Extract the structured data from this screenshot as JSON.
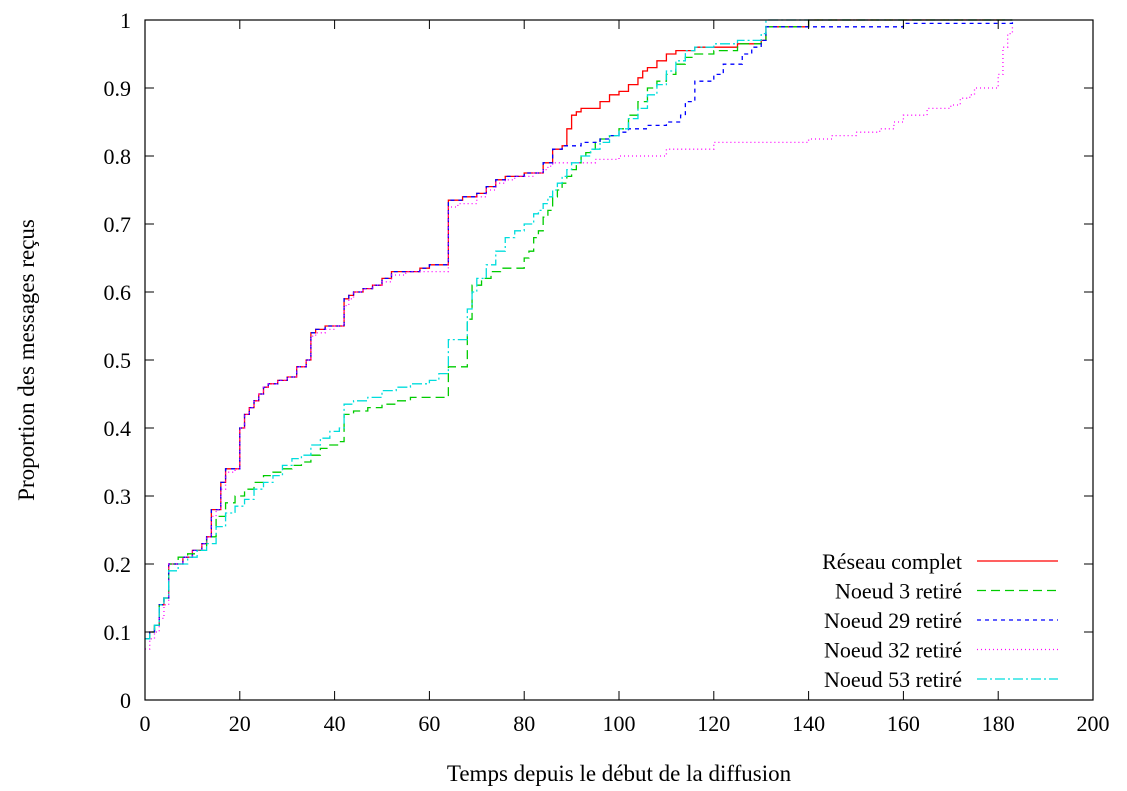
{
  "chart_data": {
    "type": "line",
    "step": true,
    "xlabel": "Temps depuis le début de la diffusion",
    "ylabel": "Proportion des messages reçus",
    "xlim": [
      0,
      200
    ],
    "ylim": [
      0,
      1
    ],
    "xticks": [
      0,
      20,
      40,
      60,
      80,
      100,
      120,
      140,
      160,
      180,
      200
    ],
    "yticks": [
      0,
      0.1,
      0.2,
      0.3,
      0.4,
      0.5,
      0.6,
      0.7,
      0.8,
      0.9,
      1
    ],
    "xtick_labels": [
      "0",
      "20",
      "40",
      "60",
      "80",
      "100",
      "120",
      "140",
      "160",
      "180",
      "200"
    ],
    "ytick_labels": [
      "0",
      "0.1",
      "0.2",
      "0.3",
      "0.4",
      "0.5",
      "0.6",
      "0.7",
      "0.8",
      "0.9",
      "1"
    ],
    "grid": false,
    "legend_position": "bottom-right",
    "series": [
      {
        "name": "Réseau complet",
        "color": "#ff0000",
        "dash": "solid",
        "x": [
          0,
          1,
          2,
          3,
          4,
          5,
          8,
          10,
          12,
          13,
          14,
          15,
          16,
          17,
          19,
          20,
          21,
          22,
          23,
          24,
          25,
          26,
          28,
          30,
          32,
          34,
          35,
          36,
          38,
          40,
          42,
          43,
          44,
          46,
          48,
          50,
          52,
          55,
          58,
          60,
          62,
          64,
          67,
          68,
          70,
          72,
          74,
          76,
          78,
          80,
          82,
          84,
          85,
          86,
          88,
          89,
          90,
          91,
          92,
          94,
          96,
          98,
          100,
          102,
          104,
          105,
          106,
          108,
          110,
          112,
          116,
          120,
          125,
          130,
          131,
          140,
          150,
          160,
          183
        ],
        "y": [
          0.09,
          0.1,
          0.11,
          0.14,
          0.15,
          0.2,
          0.21,
          0.22,
          0.23,
          0.24,
          0.28,
          0.28,
          0.32,
          0.34,
          0.34,
          0.4,
          0.42,
          0.43,
          0.44,
          0.45,
          0.46,
          0.465,
          0.47,
          0.475,
          0.49,
          0.5,
          0.54,
          0.545,
          0.55,
          0.55,
          0.59,
          0.595,
          0.6,
          0.605,
          0.61,
          0.62,
          0.63,
          0.63,
          0.635,
          0.64,
          0.64,
          0.735,
          0.74,
          0.74,
          0.745,
          0.755,
          0.765,
          0.77,
          0.77,
          0.775,
          0.775,
          0.79,
          0.79,
          0.81,
          0.815,
          0.84,
          0.86,
          0.865,
          0.87,
          0.87,
          0.88,
          0.89,
          0.895,
          0.905,
          0.915,
          0.925,
          0.93,
          0.94,
          0.95,
          0.955,
          0.96,
          0.96,
          0.965,
          0.97,
          0.99,
          1.0,
          1.0,
          1.0,
          1.0
        ]
      },
      {
        "name": "Noeud 3 retiré",
        "color": "#00cc00",
        "dash": "9,5",
        "x": [
          0,
          1,
          2,
          3,
          4,
          5,
          7,
          9,
          11,
          13,
          15,
          17,
          19,
          21,
          23,
          25,
          27,
          29,
          31,
          33,
          35,
          37,
          39,
          41,
          42,
          44,
          47,
          50,
          53,
          56,
          60,
          64,
          67,
          68,
          69,
          71,
          73,
          75,
          80,
          81,
          82,
          83,
          84,
          85,
          86,
          87,
          88,
          89,
          90,
          91,
          92,
          93,
          94,
          95,
          96,
          98,
          100,
          102,
          104,
          106,
          108,
          110,
          112,
          114,
          116,
          120,
          125,
          130,
          131,
          140,
          150,
          160,
          183
        ],
        "y": [
          0.09,
          0.1,
          0.11,
          0.14,
          0.15,
          0.2,
          0.21,
          0.215,
          0.22,
          0.24,
          0.27,
          0.29,
          0.3,
          0.31,
          0.32,
          0.33,
          0.335,
          0.34,
          0.345,
          0.35,
          0.36,
          0.37,
          0.375,
          0.38,
          0.42,
          0.425,
          0.43,
          0.435,
          0.44,
          0.445,
          0.445,
          0.49,
          0.49,
          0.56,
          0.61,
          0.62,
          0.63,
          0.635,
          0.65,
          0.66,
          0.68,
          0.69,
          0.71,
          0.72,
          0.74,
          0.75,
          0.76,
          0.77,
          0.78,
          0.79,
          0.8,
          0.805,
          0.81,
          0.82,
          0.825,
          0.83,
          0.84,
          0.86,
          0.88,
          0.9,
          0.91,
          0.92,
          0.935,
          0.945,
          0.95,
          0.955,
          0.965,
          0.97,
          0.99,
          1.0,
          1.0,
          1.0,
          1.0
        ]
      },
      {
        "name": "Noeud 29 retiré",
        "color": "#0000ff",
        "dash": "4,4",
        "x": [
          0,
          1,
          2,
          3,
          4,
          5,
          8,
          10,
          12,
          13,
          14,
          15,
          16,
          17,
          19,
          20,
          21,
          22,
          23,
          24,
          25,
          26,
          28,
          30,
          32,
          34,
          35,
          36,
          38,
          40,
          42,
          43,
          44,
          46,
          48,
          50,
          52,
          55,
          58,
          60,
          62,
          64,
          67,
          68,
          70,
          72,
          74,
          76,
          78,
          80,
          82,
          84,
          85,
          86,
          88,
          90,
          92,
          94,
          96,
          98,
          100,
          102,
          104,
          106,
          108,
          110,
          112,
          113,
          114,
          116,
          118,
          120,
          122,
          124,
          126,
          128,
          130,
          131,
          140,
          150,
          160,
          170,
          183
        ],
        "y": [
          0.09,
          0.1,
          0.11,
          0.14,
          0.15,
          0.2,
          0.21,
          0.22,
          0.23,
          0.24,
          0.28,
          0.28,
          0.32,
          0.34,
          0.34,
          0.4,
          0.42,
          0.43,
          0.44,
          0.45,
          0.46,
          0.465,
          0.47,
          0.475,
          0.49,
          0.5,
          0.54,
          0.545,
          0.55,
          0.55,
          0.59,
          0.595,
          0.6,
          0.605,
          0.61,
          0.62,
          0.63,
          0.63,
          0.635,
          0.64,
          0.64,
          0.735,
          0.74,
          0.74,
          0.745,
          0.755,
          0.765,
          0.77,
          0.77,
          0.775,
          0.775,
          0.79,
          0.79,
          0.81,
          0.815,
          0.815,
          0.82,
          0.82,
          0.825,
          0.83,
          0.835,
          0.84,
          0.84,
          0.845,
          0.845,
          0.85,
          0.85,
          0.86,
          0.88,
          0.91,
          0.91,
          0.92,
          0.935,
          0.935,
          0.95,
          0.96,
          0.97,
          0.99,
          0.99,
          0.99,
          0.995,
          0.995,
          1.0
        ]
      },
      {
        "name": "Noeud 32 retiré",
        "color": "#ff00ff",
        "dash": "1,3",
        "x": [
          0,
          1,
          2,
          3,
          4,
          5,
          8,
          10,
          12,
          13,
          14,
          15,
          16,
          17,
          19,
          20,
          21,
          22,
          23,
          24,
          25,
          26,
          28,
          30,
          32,
          34,
          35,
          36,
          38,
          40,
          42,
          43,
          44,
          46,
          48,
          50,
          52,
          55,
          58,
          60,
          62,
          64,
          66,
          68,
          70,
          72,
          74,
          76,
          78,
          80,
          82,
          84,
          85,
          86,
          88,
          90,
          92,
          95,
          100,
          110,
          120,
          130,
          140,
          145,
          150,
          155,
          158,
          160,
          165,
          170,
          172,
          174,
          175,
          176,
          178,
          180,
          181,
          182,
          183
        ],
        "y": [
          0.075,
          0.09,
          0.1,
          0.12,
          0.14,
          0.2,
          0.21,
          0.22,
          0.23,
          0.24,
          0.27,
          0.28,
          0.31,
          0.335,
          0.34,
          0.4,
          0.42,
          0.43,
          0.44,
          0.45,
          0.46,
          0.465,
          0.47,
          0.475,
          0.49,
          0.5,
          0.535,
          0.54,
          0.545,
          0.55,
          0.58,
          0.59,
          0.6,
          0.605,
          0.61,
          0.615,
          0.625,
          0.63,
          0.63,
          0.63,
          0.63,
          0.725,
          0.73,
          0.73,
          0.74,
          0.75,
          0.76,
          0.765,
          0.77,
          0.77,
          0.775,
          0.78,
          0.785,
          0.79,
          0.79,
          0.79,
          0.79,
          0.795,
          0.8,
          0.81,
          0.82,
          0.82,
          0.825,
          0.83,
          0.835,
          0.84,
          0.85,
          0.86,
          0.87,
          0.875,
          0.885,
          0.89,
          0.9,
          0.9,
          0.9,
          0.92,
          0.96,
          0.98,
          0.99
        ]
      },
      {
        "name": "Noeud 53 retiré",
        "color": "#00dddd",
        "dash": "10,3,2,3",
        "x": [
          0,
          1,
          2,
          3,
          4,
          5,
          7,
          9,
          11,
          13,
          15,
          17,
          19,
          21,
          23,
          25,
          27,
          29,
          31,
          33,
          35,
          37,
          39,
          41,
          42,
          44,
          47,
          50,
          53,
          56,
          60,
          62,
          63,
          64,
          66,
          67,
          68,
          69,
          70,
          72,
          74,
          76,
          78,
          80,
          82,
          83,
          84,
          85,
          86,
          87,
          88,
          89,
          90,
          92,
          94,
          96,
          98,
          100,
          102,
          104,
          106,
          108,
          110,
          112,
          114,
          116,
          120,
          125,
          130,
          131,
          140,
          150,
          160,
          183
        ],
        "y": [
          0.09,
          0.1,
          0.11,
          0.14,
          0.15,
          0.19,
          0.2,
          0.21,
          0.22,
          0.23,
          0.255,
          0.275,
          0.285,
          0.295,
          0.31,
          0.32,
          0.33,
          0.345,
          0.355,
          0.36,
          0.375,
          0.385,
          0.395,
          0.4,
          0.435,
          0.44,
          0.445,
          0.455,
          0.46,
          0.465,
          0.47,
          0.48,
          0.48,
          0.53,
          0.53,
          0.53,
          0.575,
          0.6,
          0.62,
          0.64,
          0.66,
          0.68,
          0.69,
          0.7,
          0.715,
          0.72,
          0.73,
          0.74,
          0.75,
          0.76,
          0.77,
          0.78,
          0.79,
          0.8,
          0.81,
          0.82,
          0.83,
          0.84,
          0.855,
          0.87,
          0.89,
          0.905,
          0.925,
          0.94,
          0.955,
          0.96,
          0.965,
          0.97,
          0.98,
          1.0,
          1.0,
          1.0,
          1.0,
          1.0
        ]
      }
    ]
  }
}
